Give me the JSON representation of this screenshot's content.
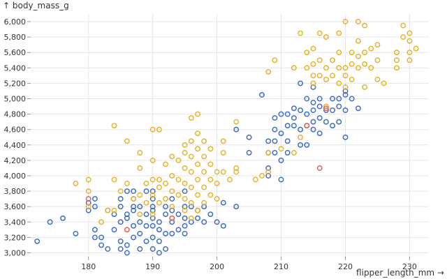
{
  "chart_data": {
    "type": "scatter",
    "xlabel": "flipper_length_mm →",
    "ylabel": "↑ body_mass_g",
    "xlim": [
      171,
      233
    ],
    "ylim": [
      2950,
      6100
    ],
    "xticks": [
      180,
      190,
      200,
      210,
      220,
      230
    ],
    "yticks": [
      3000,
      3200,
      3400,
      3600,
      3800,
      4000,
      4200,
      4400,
      4600,
      4800,
      5000,
      5200,
      5400,
      5600,
      5800,
      6000
    ],
    "xtick_labels": [
      "180",
      "190",
      "200",
      "210",
      "220",
      "230"
    ],
    "ytick_labels": [
      "3,000",
      "3,200",
      "3,400",
      "3,600",
      "3,800",
      "4,000",
      "4,200",
      "4,400",
      "4,600",
      "4,800",
      "5,000",
      "5,200",
      "5,400",
      "5,600",
      "5,800",
      "6,000"
    ],
    "grid": true,
    "marker": "hollow-circle",
    "series": [
      {
        "color": "#3f6fc5",
        "points": [
          [
            172,
            3150
          ],
          [
            174,
            3400
          ],
          [
            176,
            3450
          ],
          [
            178,
            3250
          ],
          [
            180,
            3550
          ],
          [
            180,
            3650
          ],
          [
            181,
            3700
          ],
          [
            181,
            3600
          ],
          [
            181,
            3300
          ],
          [
            181,
            3200
          ],
          [
            182,
            3100
          ],
          [
            182,
            3200
          ],
          [
            183,
            3050
          ],
          [
            183,
            3550
          ],
          [
            184,
            3500
          ],
          [
            184,
            3300
          ],
          [
            185,
            3700
          ],
          [
            185,
            3600
          ],
          [
            185,
            3400
          ],
          [
            185,
            3150
          ],
          [
            185,
            3050
          ],
          [
            186,
            3800
          ],
          [
            186,
            3500
          ],
          [
            186,
            3450
          ],
          [
            186,
            3100
          ],
          [
            186,
            3000
          ],
          [
            187,
            3800
          ],
          [
            187,
            3700
          ],
          [
            187,
            3600
          ],
          [
            187,
            3550
          ],
          [
            187,
            3350
          ],
          [
            187,
            3200
          ],
          [
            188,
            3600
          ],
          [
            188,
            3400
          ],
          [
            188,
            3250
          ],
          [
            188,
            3050
          ],
          [
            189,
            3800
          ],
          [
            189,
            3500
          ],
          [
            189,
            3350
          ],
          [
            189,
            3150
          ],
          [
            190,
            3800
          ],
          [
            190,
            3700
          ],
          [
            190,
            3600
          ],
          [
            190,
            3550
          ],
          [
            190,
            3450
          ],
          [
            190,
            3350
          ],
          [
            190,
            3200
          ],
          [
            190,
            3050
          ],
          [
            191,
            3400
          ],
          [
            191,
            3300
          ],
          [
            191,
            3150
          ],
          [
            191,
            3000
          ],
          [
            192,
            3600
          ],
          [
            192,
            3500
          ],
          [
            192,
            3250
          ],
          [
            192,
            3050
          ],
          [
            193,
            3700
          ],
          [
            193,
            3550
          ],
          [
            193,
            3400
          ],
          [
            193,
            3250
          ],
          [
            194,
            3500
          ],
          [
            194,
            3300
          ],
          [
            195,
            3800
          ],
          [
            195,
            3600
          ],
          [
            195,
            3450
          ],
          [
            195,
            3350
          ],
          [
            195,
            3250
          ],
          [
            196,
            3600
          ],
          [
            196,
            3400
          ],
          [
            197,
            3550
          ],
          [
            197,
            3450
          ],
          [
            198,
            3600
          ],
          [
            198,
            3400
          ],
          [
            199,
            3500
          ],
          [
            200,
            3400
          ],
          [
            201,
            3650
          ],
          [
            201,
            3350
          ],
          [
            203,
            3600
          ],
          [
            203,
            4600
          ],
          [
            205,
            4500
          ],
          [
            205,
            4300
          ],
          [
            207,
            5050
          ],
          [
            208,
            4450
          ],
          [
            208,
            4300
          ],
          [
            208,
            4100
          ],
          [
            208,
            4000
          ],
          [
            209,
            4750
          ],
          [
            209,
            4600
          ],
          [
            209,
            4450
          ],
          [
            209,
            4300
          ],
          [
            210,
            4800
          ],
          [
            210,
            4550
          ],
          [
            210,
            4200
          ],
          [
            210,
            3950
          ],
          [
            211,
            4800
          ],
          [
            211,
            4650
          ],
          [
            211,
            4450
          ],
          [
            211,
            4300
          ],
          [
            212,
            4875
          ],
          [
            212,
            4750
          ],
          [
            212,
            4650
          ],
          [
            213,
            5200
          ],
          [
            213,
            4850
          ],
          [
            213,
            4600
          ],
          [
            213,
            4400
          ],
          [
            214,
            5000
          ],
          [
            214,
            4800
          ],
          [
            214,
            4650
          ],
          [
            214,
            4400
          ],
          [
            215,
            5150
          ],
          [
            215,
            4950
          ],
          [
            215,
            4850
          ],
          [
            215,
            4700
          ],
          [
            215,
            4600
          ],
          [
            216,
            5000
          ],
          [
            216,
            4900
          ],
          [
            216,
            4750
          ],
          [
            216,
            4550
          ],
          [
            217,
            4700
          ],
          [
            217,
            4850
          ],
          [
            218,
            5000
          ],
          [
            218,
            4850
          ],
          [
            218,
            4650
          ],
          [
            219,
            5000
          ],
          [
            219,
            4900
          ],
          [
            219,
            4700
          ],
          [
            220,
            5100
          ],
          [
            220,
            5050
          ],
          [
            220,
            4850
          ],
          [
            220,
            4500
          ],
          [
            221,
            5000
          ],
          [
            222,
            4875
          ]
        ]
      },
      {
        "color": "#e8b32e",
        "points": [
          [
            178,
            3900
          ],
          [
            180,
            3950
          ],
          [
            180,
            3800
          ],
          [
            180,
            3600
          ],
          [
            182,
            3400
          ],
          [
            183,
            3550
          ],
          [
            184,
            3950
          ],
          [
            184,
            3550
          ],
          [
            184,
            4650
          ],
          [
            185,
            3800
          ],
          [
            186,
            4450
          ],
          [
            186,
            3900
          ],
          [
            187,
            3700
          ],
          [
            188,
            4300
          ],
          [
            188,
            4100
          ],
          [
            188,
            3750
          ],
          [
            188,
            3500
          ],
          [
            189,
            3900
          ],
          [
            189,
            3650
          ],
          [
            190,
            4600
          ],
          [
            190,
            4200
          ],
          [
            190,
            3950
          ],
          [
            190,
            3750
          ],
          [
            190,
            3500
          ],
          [
            191,
            4600
          ],
          [
            191,
            3950
          ],
          [
            191,
            3850
          ],
          [
            191,
            3650
          ],
          [
            192,
            4150
          ],
          [
            192,
            3900
          ],
          [
            192,
            3700
          ],
          [
            193,
            4250
          ],
          [
            193,
            4000
          ],
          [
            193,
            3800
          ],
          [
            193,
            3600
          ],
          [
            193,
            3450
          ],
          [
            194,
            4200
          ],
          [
            194,
            3950
          ],
          [
            194,
            3750
          ],
          [
            195,
            4400
          ],
          [
            195,
            4300
          ],
          [
            195,
            4100
          ],
          [
            195,
            3900
          ],
          [
            195,
            3700
          ],
          [
            195,
            3550
          ],
          [
            196,
            4750
          ],
          [
            196,
            4450
          ],
          [
            196,
            4250
          ],
          [
            196,
            4050
          ],
          [
            196,
            3850
          ],
          [
            196,
            3650
          ],
          [
            196,
            3450
          ],
          [
            197,
            4800
          ],
          [
            197,
            4550
          ],
          [
            197,
            4350
          ],
          [
            197,
            4150
          ],
          [
            197,
            3950
          ],
          [
            197,
            3750
          ],
          [
            197,
            3550
          ],
          [
            198,
            4450
          ],
          [
            198,
            4250
          ],
          [
            198,
            4050
          ],
          [
            198,
            3850
          ],
          [
            198,
            3650
          ],
          [
            199,
            4350
          ],
          [
            199,
            4150
          ],
          [
            199,
            3950
          ],
          [
            199,
            3750
          ],
          [
            200,
            4050
          ],
          [
            200,
            3900
          ],
          [
            200,
            3700
          ],
          [
            201,
            4450
          ],
          [
            201,
            4300
          ],
          [
            201,
            4050
          ],
          [
            202,
            3950
          ],
          [
            203,
            4700
          ],
          [
            203,
            4100
          ],
          [
            203,
            4050
          ],
          [
            206,
            3950
          ],
          [
            207,
            4000
          ],
          [
            208,
            4300
          ],
          [
            208,
            5350
          ],
          [
            208,
            4050
          ],
          [
            209,
            5500
          ],
          [
            210,
            4350
          ],
          [
            212,
            4300
          ],
          [
            212,
            5400
          ],
          [
            213,
            4500
          ],
          [
            213,
            5850
          ],
          [
            214,
            5600
          ],
          [
            214,
            5400
          ],
          [
            215,
            5650
          ],
          [
            215,
            5450
          ],
          [
            215,
            5300
          ],
          [
            215,
            5200
          ],
          [
            216,
            5850
          ],
          [
            216,
            5500
          ],
          [
            216,
            5300
          ],
          [
            217,
            5800
          ],
          [
            217,
            5400
          ],
          [
            217,
            5250
          ],
          [
            217,
            4900
          ],
          [
            218,
            5500
          ],
          [
            218,
            5300
          ],
          [
            219,
            5850
          ],
          [
            219,
            5600
          ],
          [
            219,
            5400
          ],
          [
            219,
            5200
          ],
          [
            220,
            6000
          ],
          [
            220,
            5400
          ],
          [
            220,
            5300
          ],
          [
            220,
            5150
          ],
          [
            221,
            5600
          ],
          [
            221,
            5450
          ],
          [
            221,
            5250
          ],
          [
            222,
            6000
          ],
          [
            222,
            5750
          ],
          [
            222,
            5550
          ],
          [
            222,
            5400
          ],
          [
            223,
            5950
          ],
          [
            223,
            5600
          ],
          [
            223,
            5450
          ],
          [
            223,
            5150
          ],
          [
            224,
            5650
          ],
          [
            224,
            5400
          ],
          [
            225,
            5700
          ],
          [
            225,
            5500
          ],
          [
            225,
            5250
          ],
          [
            226,
            5200
          ],
          [
            228,
            5600
          ],
          [
            228,
            5500
          ],
          [
            228,
            5400
          ],
          [
            229,
            5950
          ],
          [
            229,
            5800
          ],
          [
            230,
            5850
          ],
          [
            230,
            5750
          ],
          [
            230,
            5600
          ],
          [
            230,
            5500
          ],
          [
            231,
            5650
          ]
        ]
      },
      {
        "color": "#e5645a",
        "points": [
          [
            180,
            3700
          ],
          [
            186,
            3300
          ],
          [
            193,
            3450
          ],
          [
            214,
            4650
          ],
          [
            216,
            4100
          ],
          [
            217,
            4875
          ]
        ]
      }
    ]
  }
}
